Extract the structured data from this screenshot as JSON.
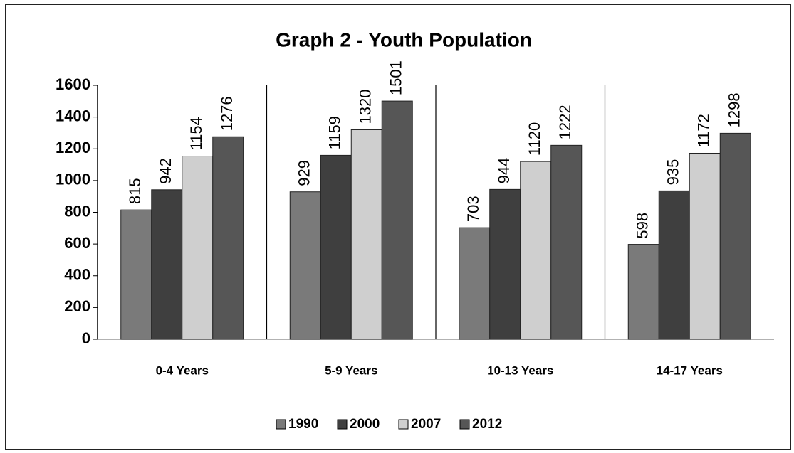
{
  "chart_data": {
    "type": "bar",
    "title": "Graph 2 - Youth Population",
    "categories": [
      "0-4 Years",
      "5-9 Years",
      "10-13 Years",
      "14-17 Years"
    ],
    "series": [
      {
        "name": "1990",
        "color": "#7a7a7a",
        "values": [
          815,
          929,
          703,
          598
        ]
      },
      {
        "name": "2000",
        "color": "#3f3f3f",
        "values": [
          942,
          1159,
          944,
          935
        ]
      },
      {
        "name": "2007",
        "color": "#cfcfcf",
        "values": [
          1154,
          1320,
          1120,
          1172
        ]
      },
      {
        "name": "2012",
        "color": "#565656",
        "values": [
          1276,
          1501,
          1222,
          1298
        ]
      }
    ],
    "ylim": [
      0,
      1600
    ],
    "yticks": [
      0,
      200,
      400,
      600,
      800,
      1000,
      1200,
      1400,
      1600
    ],
    "grid": false,
    "legend": "bottom"
  }
}
